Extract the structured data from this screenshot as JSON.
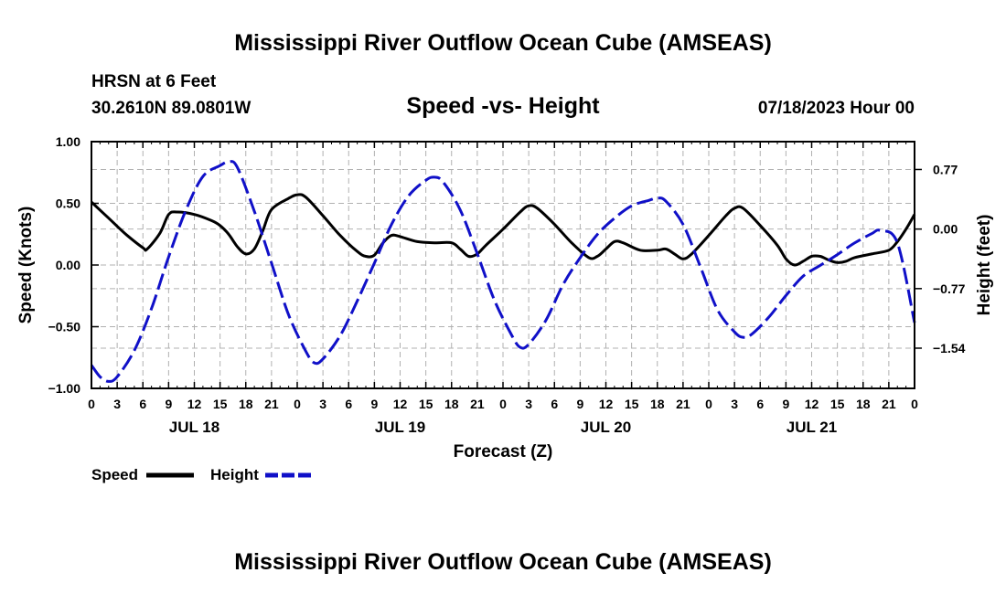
{
  "page": {
    "title": "Mississippi River Outflow Ocean Cube (AMSEAS)",
    "station": "HRSN at 6 Feet",
    "location": "30.2610N  89.0801W",
    "issued": "07/18/2023 Hour 00",
    "bottom_title": "Mississippi River Outflow Ocean Cube (AMSEAS)"
  },
  "chart_data": {
    "type": "line",
    "title": "Speed -vs- Height",
    "xlabel": "Forecast (Z)",
    "ylabel": "Speed (Knots)",
    "ylabel_right": "Height (feet)",
    "xlim": [
      0,
      96
    ],
    "ylim": [
      -1.0,
      1.0
    ],
    "ylim_right": [
      -2.06,
      1.13
    ],
    "grid": true,
    "x_tick_labels": [
      "0",
      "3",
      "6",
      "9",
      "12",
      "15",
      "18",
      "21",
      "0",
      "3",
      "6",
      "9",
      "12",
      "15",
      "18",
      "21",
      "0",
      "3",
      "6",
      "9",
      "12",
      "15",
      "18",
      "21",
      "0",
      "3",
      "6",
      "9",
      "12",
      "15",
      "18",
      "21",
      "0"
    ],
    "date_labels": [
      {
        "hour": 12,
        "label": "JUL 18"
      },
      {
        "hour": 36,
        "label": "JUL 19"
      },
      {
        "hour": 60,
        "label": "JUL 20"
      },
      {
        "hour": 84,
        "label": "JUL 21"
      }
    ],
    "y_ticks_left": [
      {
        "value": 1.0,
        "label": "1.00"
      },
      {
        "value": 0.5,
        "label": "0.50"
      },
      {
        "value": 0.0,
        "label": "0.00"
      },
      {
        "value": -0.5,
        "label": "−0.50"
      },
      {
        "value": -1.0,
        "label": "−1.00"
      }
    ],
    "y_ticks_right": [
      {
        "value": 0.77,
        "label": "0.77"
      },
      {
        "value": 0.0,
        "label": "0.00"
      },
      {
        "value": -0.77,
        "label": "−0.77"
      },
      {
        "value": -1.54,
        "label": "−1.54"
      }
    ],
    "legend": [
      {
        "name": "Speed",
        "color": "#000000",
        "dash": "solid"
      },
      {
        "name": "Height",
        "color": "#1010c8",
        "dash": "dashed"
      }
    ],
    "series": [
      {
        "name": "Speed",
        "axis": "left",
        "color": "#000000",
        "points": [
          [
            0,
            0.51
          ],
          [
            2,
            0.38
          ],
          [
            4,
            0.25
          ],
          [
            6,
            0.14
          ],
          [
            6.5,
            0.13
          ],
          [
            8,
            0.26
          ],
          [
            9,
            0.41
          ],
          [
            10,
            0.43
          ],
          [
            12,
            0.41
          ],
          [
            14,
            0.36
          ],
          [
            15,
            0.32
          ],
          [
            16,
            0.25
          ],
          [
            17,
            0.15
          ],
          [
            18,
            0.09
          ],
          [
            19,
            0.13
          ],
          [
            20,
            0.28
          ],
          [
            21,
            0.45
          ],
          [
            23,
            0.54
          ],
          [
            24,
            0.57
          ],
          [
            25,
            0.55
          ],
          [
            27,
            0.4
          ],
          [
            29,
            0.24
          ],
          [
            31,
            0.11
          ],
          [
            32,
            0.07
          ],
          [
            33,
            0.08
          ],
          [
            34,
            0.18
          ],
          [
            35,
            0.24
          ],
          [
            36,
            0.23
          ],
          [
            38,
            0.19
          ],
          [
            40,
            0.18
          ],
          [
            42,
            0.18
          ],
          [
            43,
            0.13
          ],
          [
            44,
            0.07
          ],
          [
            45,
            0.09
          ],
          [
            46,
            0.16
          ],
          [
            48,
            0.29
          ],
          [
            50,
            0.43
          ],
          [
            51,
            0.48
          ],
          [
            52,
            0.46
          ],
          [
            54,
            0.33
          ],
          [
            56,
            0.18
          ],
          [
            58,
            0.06
          ],
          [
            59,
            0.07
          ],
          [
            60,
            0.13
          ],
          [
            61,
            0.19
          ],
          [
            62,
            0.18
          ],
          [
            64,
            0.12
          ],
          [
            66,
            0.12
          ],
          [
            67,
            0.13
          ],
          [
            68,
            0.09
          ],
          [
            69,
            0.05
          ],
          [
            70,
            0.09
          ],
          [
            72,
            0.24
          ],
          [
            74,
            0.4
          ],
          [
            75,
            0.46
          ],
          [
            76,
            0.46
          ],
          [
            78,
            0.32
          ],
          [
            80,
            0.16
          ],
          [
            81,
            0.05
          ],
          [
            82,
            0.0
          ],
          [
            83,
            0.03
          ],
          [
            84,
            0.07
          ],
          [
            85,
            0.07
          ],
          [
            86,
            0.04
          ],
          [
            87,
            0.02
          ],
          [
            88,
            0.03
          ],
          [
            89,
            0.06
          ],
          [
            91,
            0.09
          ],
          [
            93,
            0.12
          ],
          [
            94,
            0.19
          ],
          [
            95,
            0.29
          ],
          [
            96,
            0.41
          ]
        ]
      },
      {
        "name": "Height",
        "axis": "right",
        "color": "#1010c8",
        "points": [
          [
            0,
            -1.76
          ],
          [
            1,
            -1.91
          ],
          [
            2,
            -1.97
          ],
          [
            3,
            -1.91
          ],
          [
            5,
            -1.57
          ],
          [
            7,
            -1.03
          ],
          [
            9,
            -0.36
          ],
          [
            11,
            0.24
          ],
          [
            13,
            0.68
          ],
          [
            15,
            0.82
          ],
          [
            16,
            0.87
          ],
          [
            17,
            0.8
          ],
          [
            19,
            0.23
          ],
          [
            21,
            -0.44
          ],
          [
            23,
            -1.11
          ],
          [
            25,
            -1.58
          ],
          [
            26,
            -1.73
          ],
          [
            27,
            -1.68
          ],
          [
            29,
            -1.38
          ],
          [
            31,
            -0.93
          ],
          [
            33,
            -0.44
          ],
          [
            35,
            0.06
          ],
          [
            37,
            0.43
          ],
          [
            39,
            0.63
          ],
          [
            40,
            0.67
          ],
          [
            41,
            0.61
          ],
          [
            43,
            0.25
          ],
          [
            45,
            -0.32
          ],
          [
            47,
            -0.92
          ],
          [
            49,
            -1.37
          ],
          [
            50,
            -1.53
          ],
          [
            51,
            -1.49
          ],
          [
            53,
            -1.18
          ],
          [
            55,
            -0.72
          ],
          [
            57,
            -0.37
          ],
          [
            59,
            -0.07
          ],
          [
            61,
            0.14
          ],
          [
            63,
            0.3
          ],
          [
            65,
            0.37
          ],
          [
            66,
            0.4
          ],
          [
            67,
            0.36
          ],
          [
            69,
            0.06
          ],
          [
            71,
            -0.48
          ],
          [
            73,
            -1.04
          ],
          [
            75,
            -1.33
          ],
          [
            76,
            -1.4
          ],
          [
            77,
            -1.36
          ],
          [
            79,
            -1.14
          ],
          [
            81,
            -0.86
          ],
          [
            83,
            -0.61
          ],
          [
            85,
            -0.47
          ],
          [
            87,
            -0.33
          ],
          [
            89,
            -0.18
          ],
          [
            91,
            -0.06
          ],
          [
            92,
            -0.02
          ],
          [
            94,
            -0.18
          ],
          [
            96,
            -1.21
          ]
        ]
      }
    ]
  }
}
